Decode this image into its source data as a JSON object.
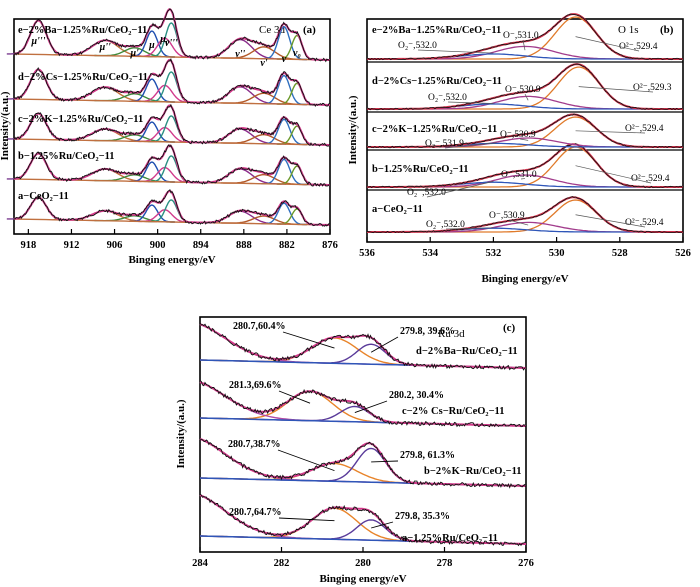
{
  "chart_data": [
    {
      "type": "line",
      "panel_label": "(a)",
      "title": "Ce 3d",
      "xlabel": "Binging energy/eV",
      "ylabel": "Intensity/(a.u.)",
      "xlim": [
        920,
        876
      ],
      "x_reversed": true,
      "xticks": [
        918,
        912,
        906,
        900,
        894,
        888,
        882,
        876
      ],
      "series": [
        {
          "name": "a−CeO₂−11"
        },
        {
          "name": "b−1.25%Ru/CeO₂−11"
        },
        {
          "name": "c−2%K−1.25%Ru/CeO₂−11"
        },
        {
          "name": "d−2%Cs−1.25%Ru/CeO₂−11"
        },
        {
          "name": "e−2%Ba−1.25%Ru/CeO₂−11"
        }
      ],
      "peak_labels": [
        "μ'''",
        "μ''",
        "μ'",
        "μ",
        "μ₀",
        "v'''",
        "v''",
        "v'",
        "v",
        "v₀"
      ],
      "peak_positions": [
        916.6,
        907.3,
        903.2,
        900.8,
        899.0,
        898.1,
        888.5,
        885.2,
        882.4,
        880.6
      ]
    },
    {
      "type": "line",
      "panel_label": "(b)",
      "title": "O 1s",
      "xlabel": "Binging energy/eV",
      "ylabel": "Intensity/(a.u.)",
      "xlim": [
        536,
        526
      ],
      "x_reversed": true,
      "xticks": [
        536,
        534,
        532,
        530,
        528,
        526
      ],
      "series": [
        {
          "name": "a−CeO₂−11",
          "peaks": [
            {
              "label": "O₂⁻,532.0",
              "x": 532.0
            },
            {
              "label": "O⁻,530.9",
              "x": 530.9
            },
            {
              "label": "O²⁻,529.4",
              "x": 529.4
            }
          ]
        },
        {
          "name": "b−1.25%Ru/CeO₂−11",
          "peaks": [
            {
              "label": "O₂⁻,532.0",
              "x": 532.0
            },
            {
              "label": "O⁻,531.0",
              "x": 531.0
            },
            {
              "label": "O²⁻,529.4",
              "x": 529.4
            }
          ]
        },
        {
          "name": "c−2%K−1.25%Ru/CeO₂−11",
          "peaks": [
            {
              "label": "O₂⁻,531.9",
              "x": 531.9
            },
            {
              "label": "O⁻,530.9",
              "x": 530.9
            },
            {
              "label": "O²⁻,529.4",
              "x": 529.4
            }
          ]
        },
        {
          "name": "d−2%Cs−1.25%Ru/CeO₂−11",
          "peaks": [
            {
              "label": "O₂⁻,532.0",
              "x": 532.0
            },
            {
              "label": "O⁻,530.9",
              "x": 530.9
            },
            {
              "label": "O²⁻,529.3",
              "x": 529.3
            }
          ]
        },
        {
          "name": "e−2%Ba−1.25%Ru/CeO₂−11",
          "peaks": [
            {
              "label": "O₂⁻,532.0",
              "x": 532.0
            },
            {
              "label": "O⁻,531.0",
              "x": 531.0
            },
            {
              "label": "O²⁻,529.4",
              "x": 529.4
            }
          ]
        }
      ]
    },
    {
      "type": "line",
      "panel_label": "(c)",
      "title": "Ru 3d",
      "xlabel": "Binging energy/eV",
      "ylabel": "Intensity/(a.u.)",
      "xlim": [
        284,
        276
      ],
      "x_reversed": true,
      "xticks": [
        284,
        282,
        280,
        278,
        276
      ],
      "series": [
        {
          "name": "a−1.25%Ru/CeO₂−11",
          "peaks": [
            {
              "label": "280.7,64.7%",
              "x": 280.7,
              "pct": 64.7
            },
            {
              "label": "279.8, 35.3%",
              "x": 279.8,
              "pct": 35.3
            }
          ]
        },
        {
          "name": "b−2%K−Ru/CeO₂−11",
          "peaks": [
            {
              "label": "280.7,38.7%",
              "x": 280.7,
              "pct": 38.7
            },
            {
              "label": "279.8, 61.3%",
              "x": 279.8,
              "pct": 61.3
            }
          ]
        },
        {
          "name": "c−2% Cs−Ru/CeO₂−11",
          "peaks": [
            {
              "label": "281.3,69.6%",
              "x": 281.3,
              "pct": 69.6
            },
            {
              "label": "280.2, 30.4%",
              "x": 280.2,
              "pct": 30.4
            }
          ]
        },
        {
          "name": "d−2%Ba−Ru/CeO₂−11",
          "peaks": [
            {
              "label": "280.7,60.4%",
              "x": 280.7,
              "pct": 60.4
            },
            {
              "label": "279.8, 39.6%",
              "x": 279.8,
              "pct": 39.6
            }
          ]
        }
      ]
    }
  ]
}
